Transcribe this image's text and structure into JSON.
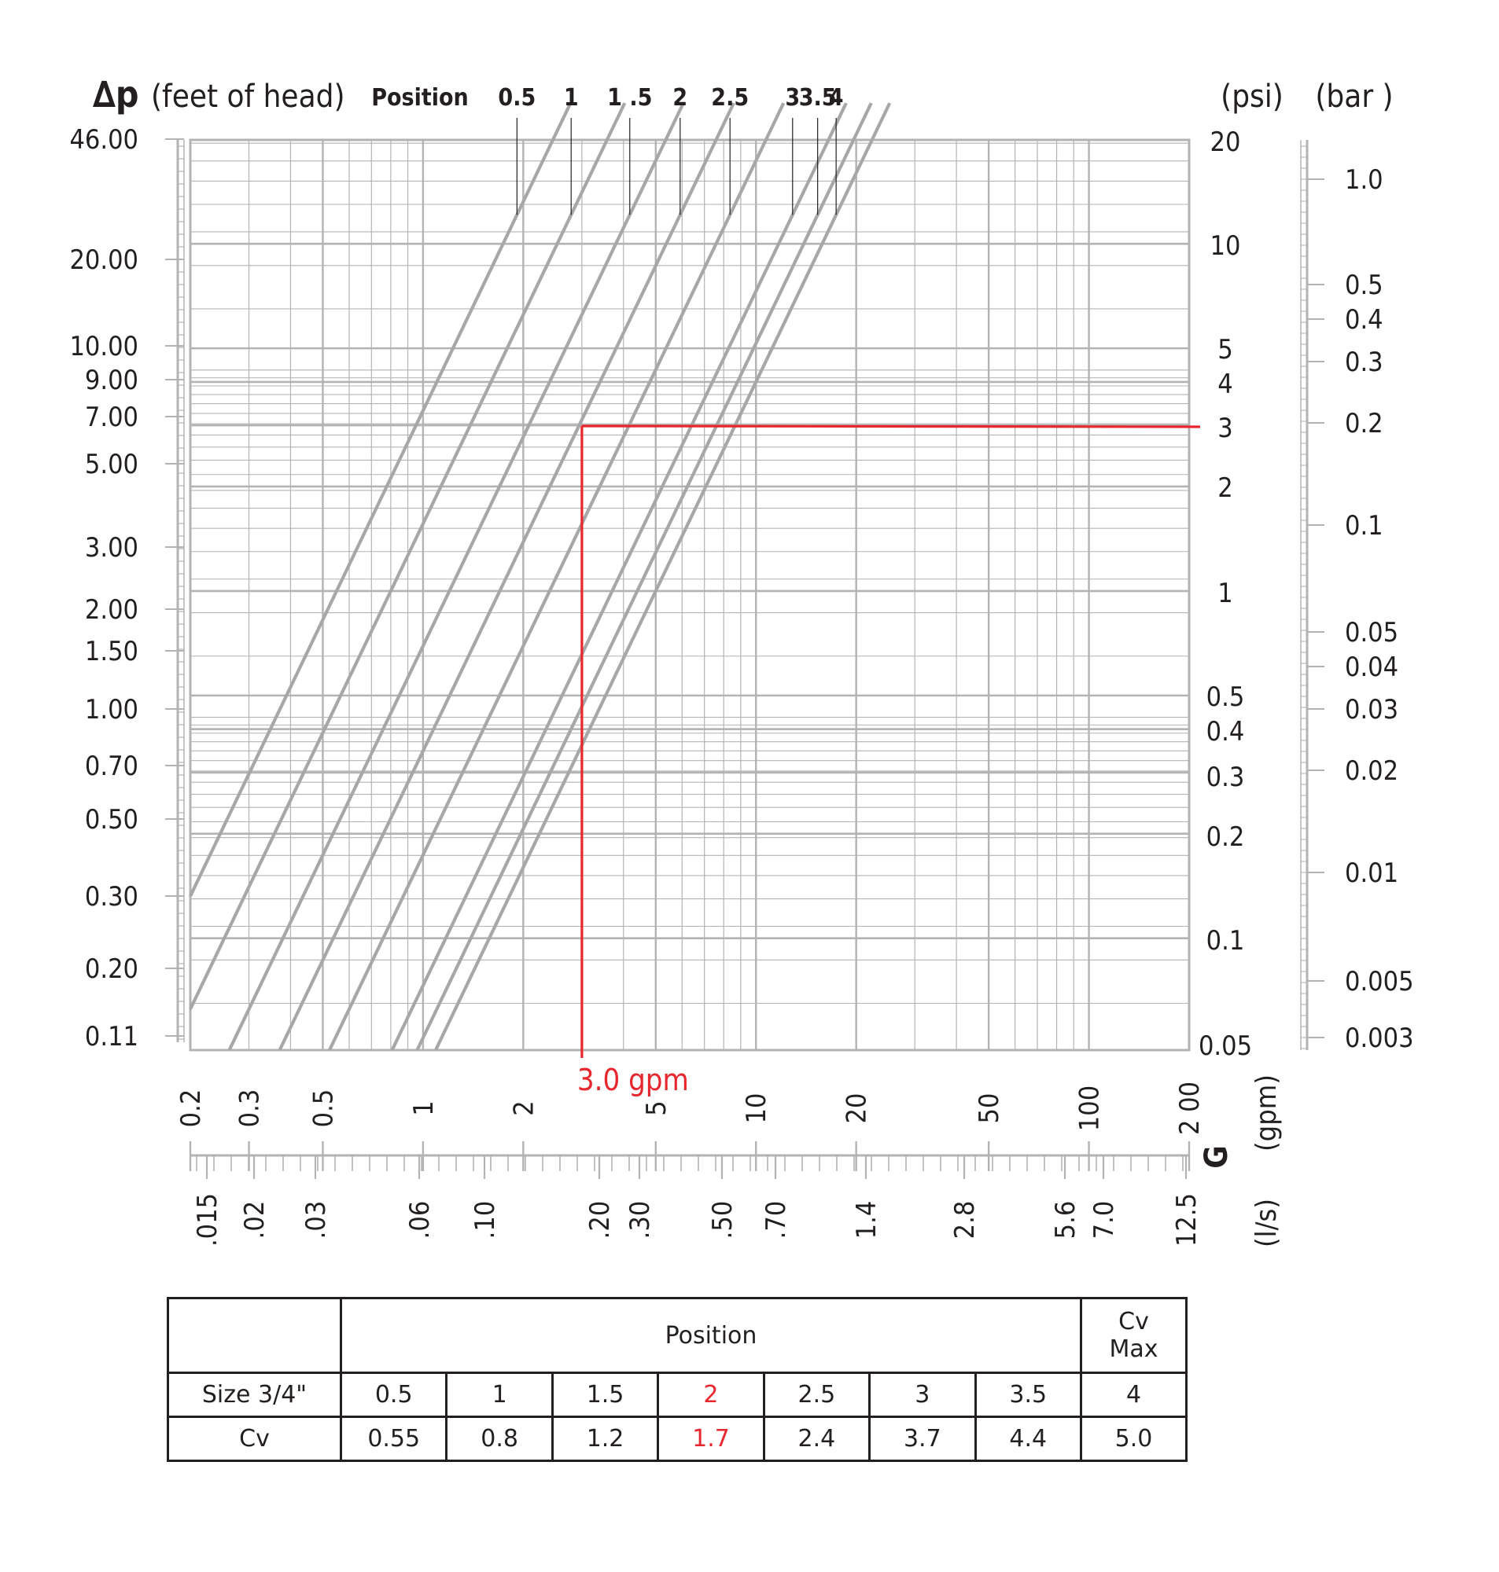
{
  "chart_data": {
    "type": "line",
    "xscale": "log",
    "yscale": "log",
    "xlim": [
      0.2,
      200
    ],
    "ylim": [
      0.11,
      46
    ],
    "y_left": {
      "symbol": "∆p",
      "unit": "(feet of head)",
      "ticks": [
        "46.00",
        "20.00",
        "10.00",
        "9.00",
        "7.00",
        "5.00",
        "3.00",
        "2.00",
        "1.50",
        "1.00",
        "0.70",
        "0.50",
        "0.30",
        "0.20",
        "0.11"
      ]
    },
    "y_right_psi": {
      "unit": "(psi)",
      "ticks": [
        "20",
        "10",
        "5",
        "4",
        "3",
        "2",
        "1",
        "0.5",
        "0.4",
        "0.3",
        "0.2",
        "0.1",
        "0.05"
      ]
    },
    "y_right_bar": {
      "unit": "(bar )",
      "ticks": [
        "1.0",
        "0.5",
        "0.4",
        "0.3",
        "0.2",
        "0.1",
        "0.05",
        "0.04",
        "0.03",
        "0.02",
        "0.01",
        "0.005",
        "0.003"
      ]
    },
    "x_gpm": {
      "symbol": "G",
      "unit": "(gpm)",
      "ticks": [
        "0.2",
        "0.3",
        "0.5",
        "1",
        "2",
        "5",
        "10",
        "20",
        "50",
        "100",
        "2 00"
      ]
    },
    "x_ls": {
      "unit": "(l/s)",
      "ticks": [
        ".015",
        ".02",
        ".03",
        ".06",
        ".10",
        ".20",
        ".30",
        ".50",
        ".70",
        "1.4",
        "2.8",
        "5.6",
        "7.0",
        "12.5"
      ]
    },
    "position_label": "Position",
    "series": [
      {
        "name": "0.5",
        "cv": 0.55
      },
      {
        "name": "1",
        "cv": 0.8
      },
      {
        "name": "1 .5",
        "cv": 1.2
      },
      {
        "name": "2",
        "cv": 1.7
      },
      {
        "name": "2.5",
        "cv": 2.4
      },
      {
        "name": "3",
        "cv": 3.7
      },
      {
        "name": "3.5",
        "cv": 4.4
      },
      {
        "name": "4",
        "cv": 5.0
      }
    ],
    "annotation": {
      "text": "3.0 gpm",
      "x": 3.0,
      "y": 6.9
    }
  },
  "table": {
    "header": "Position",
    "cvmax_line1": "Cv",
    "cvmax_line2": "Max",
    "row1_label": "Size 3/4\"",
    "row1_values": [
      "0.5",
      "1",
      "1.5",
      "2",
      "2.5",
      "3",
      "3.5",
      "4"
    ],
    "row2_label": "Cv",
    "row2_values": [
      "0.55",
      "0.8",
      "1.2",
      "1.7",
      "2.4",
      "3.7",
      "4.4",
      "5.0"
    ],
    "highlight_index": 3
  },
  "colors": {
    "grid": "#b3b3b3",
    "curve": "#a7a7a9",
    "red": "#e8262d",
    "text": "#231f20"
  }
}
